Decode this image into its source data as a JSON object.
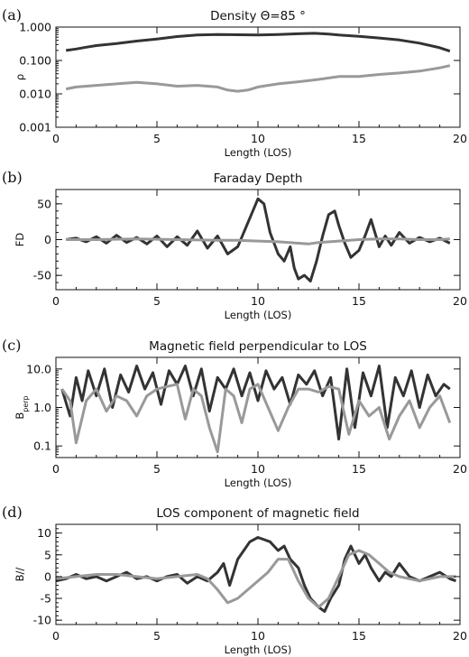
{
  "chart_data": [
    {
      "panel_label": "(a)",
      "type": "line",
      "title": "Density Θ=85 °",
      "xlabel": "Length (LOS)",
      "ylabel": "ρ",
      "xlim": [
        0,
        20
      ],
      "ylim": [
        0.001,
        1.0
      ],
      "yscale": "log",
      "xticks": [
        0,
        5,
        10,
        15,
        20
      ],
      "xtick_labels": [
        "0",
        "5",
        "10",
        "15",
        "20"
      ],
      "yticks": [
        0.001,
        0.01,
        0.1,
        1.0
      ],
      "ytick_labels": [
        "0.001",
        "0.010",
        "0.100",
        "1.000"
      ],
      "series": [
        {
          "color": "#333333",
          "x": [
            0.5,
            1,
            1.5,
            2,
            3,
            4,
            5,
            6,
            7,
            8,
            9,
            10,
            11,
            12,
            12.8,
            13.5,
            14,
            15,
            16,
            17,
            18,
            19,
            19.5
          ],
          "y": [
            0.2,
            0.22,
            0.25,
            0.28,
            0.32,
            0.38,
            0.44,
            0.52,
            0.58,
            0.6,
            0.59,
            0.58,
            0.6,
            0.63,
            0.65,
            0.62,
            0.58,
            0.53,
            0.47,
            0.41,
            0.33,
            0.24,
            0.19
          ]
        },
        {
          "color": "#999999",
          "x": [
            0.5,
            1,
            2,
            3,
            4,
            5,
            6,
            7,
            8,
            8.5,
            9,
            9.5,
            10,
            11,
            12,
            13,
            14,
            15,
            16,
            17,
            18,
            19,
            19.5
          ],
          "y": [
            0.014,
            0.016,
            0.018,
            0.02,
            0.022,
            0.02,
            0.017,
            0.018,
            0.016,
            0.013,
            0.012,
            0.013,
            0.016,
            0.02,
            0.023,
            0.027,
            0.033,
            0.033,
            0.038,
            0.042,
            0.048,
            0.06,
            0.07
          ]
        }
      ]
    },
    {
      "panel_label": "(b)",
      "type": "line",
      "title": "Faraday Depth",
      "xlabel": "Length (LOS)",
      "ylabel": "FD",
      "xlim": [
        0,
        20
      ],
      "ylim": [
        -70,
        70
      ],
      "yscale": "linear",
      "xticks": [
        0,
        5,
        10,
        15,
        20
      ],
      "xtick_labels": [
        "0",
        "5",
        "10",
        "15",
        "20"
      ],
      "yticks": [
        -50,
        0,
        50
      ],
      "ytick_labels": [
        "-50",
        "0",
        "50"
      ],
      "series": [
        {
          "color": "#333333",
          "x": [
            0.5,
            1,
            1.5,
            2,
            2.5,
            3,
            3.5,
            4,
            4.5,
            5,
            5.5,
            6,
            6.5,
            7,
            7.5,
            8,
            8.5,
            9,
            9.3,
            9.6,
            10,
            10.3,
            10.6,
            11,
            11.3,
            11.6,
            11.8,
            12,
            12.3,
            12.6,
            12.9,
            13.2,
            13.5,
            13.8,
            14,
            14.3,
            14.6,
            15,
            15.3,
            15.6,
            16,
            16.3,
            16.6,
            17,
            17.5,
            18,
            18.5,
            19,
            19.5
          ],
          "y": [
            0,
            2,
            -3,
            4,
            -5,
            6,
            -4,
            3,
            -6,
            5,
            -10,
            4,
            -8,
            12,
            -12,
            5,
            -20,
            -10,
            10,
            30,
            57,
            50,
            10,
            -20,
            -30,
            -10,
            -40,
            -55,
            -50,
            -58,
            -30,
            5,
            35,
            40,
            20,
            -5,
            -25,
            -15,
            5,
            28,
            -10,
            5,
            -8,
            10,
            -5,
            3,
            -3,
            2,
            -5
          ]
        },
        {
          "color": "#999999",
          "x": [
            0.5,
            2,
            4,
            6,
            8,
            9,
            10,
            11,
            12,
            12.5,
            13,
            14,
            15,
            16,
            17,
            18,
            19,
            19.5
          ],
          "y": [
            0,
            0,
            1,
            0,
            -1,
            -1,
            -2,
            -3,
            -5,
            -6,
            -4,
            -2,
            0,
            1,
            1,
            0,
            0,
            1
          ]
        }
      ]
    },
    {
      "panel_label": "(c)",
      "type": "line",
      "title": "Magnetic field perpendicular to LOS",
      "xlabel": "Length (LOS)",
      "ylabel": "B_perp",
      "xlim": [
        0,
        20
      ],
      "ylim": [
        0.05,
        20
      ],
      "yscale": "log",
      "xticks": [
        0,
        5,
        10,
        15,
        20
      ],
      "xtick_labels": [
        "0",
        "5",
        "10",
        "15",
        "20"
      ],
      "yticks": [
        0.1,
        1.0,
        10.0
      ],
      "ytick_labels": [
        "0.1",
        "1.0",
        "10.0"
      ],
      "series": [
        {
          "color": "#333333",
          "x": [
            0.3,
            0.7,
            1,
            1.3,
            1.6,
            2,
            2.4,
            2.8,
            3.2,
            3.6,
            4,
            4.4,
            4.8,
            5.2,
            5.6,
            6,
            6.4,
            6.8,
            7.2,
            7.6,
            8,
            8.4,
            8.8,
            9.2,
            9.6,
            10,
            10.4,
            10.8,
            11.2,
            11.6,
            12,
            12.4,
            12.8,
            13.2,
            13.6,
            14,
            14.4,
            14.8,
            15.2,
            15.6,
            16,
            16.4,
            16.8,
            17.2,
            17.6,
            18,
            18.4,
            18.8,
            19.2,
            19.5
          ],
          "y": [
            3,
            0.6,
            6,
            1.5,
            9,
            2,
            10,
            1,
            7,
            2.5,
            12,
            3,
            8,
            1.2,
            9,
            4,
            12,
            2,
            10,
            0.8,
            6,
            3,
            10,
            2,
            8,
            1.5,
            9,
            3,
            6,
            1.2,
            7,
            4,
            9,
            2,
            6,
            0.15,
            10,
            0.3,
            8,
            2,
            12,
            0.3,
            6,
            2,
            9,
            1,
            7,
            2,
            4,
            3
          ]
        },
        {
          "color": "#999999",
          "x": [
            0.3,
            0.7,
            1,
            1.5,
            2,
            2.5,
            3,
            3.5,
            4,
            4.5,
            5,
            5.5,
            6,
            6.4,
            6.8,
            7.2,
            7.6,
            8,
            8.4,
            8.8,
            9.2,
            9.6,
            10,
            10.5,
            11,
            11.5,
            12,
            12.5,
            13,
            13.5,
            14,
            14.5,
            15,
            15.5,
            16,
            16.5,
            17,
            17.5,
            18,
            18.5,
            19,
            19.5
          ],
          "y": [
            3,
            1.5,
            0.12,
            1.5,
            3,
            0.8,
            2,
            1.5,
            0.6,
            2,
            3,
            3.5,
            4,
            0.5,
            3,
            2,
            0.3,
            0.07,
            3,
            2,
            0.4,
            3,
            4,
            1,
            0.25,
            1,
            3,
            3,
            2.5,
            3.5,
            3,
            0.2,
            1.5,
            0.6,
            1,
            0.15,
            0.6,
            1.5,
            0.3,
            1,
            2,
            0.4
          ]
        }
      ]
    },
    {
      "panel_label": "(d)",
      "type": "line",
      "title": "LOS component of magnetic field",
      "xlabel": "Length (LOS)",
      "ylabel": "B//",
      "xlim": [
        0,
        20
      ],
      "ylim": [
        -11,
        12
      ],
      "yscale": "linear",
      "xticks": [
        0,
        5,
        10,
        15,
        20
      ],
      "xtick_labels": [
        "0",
        "5",
        "10",
        "15",
        "20"
      ],
      "yticks": [
        -10,
        -5,
        0,
        5,
        10
      ],
      "ytick_labels": [
        "-10",
        "-5",
        "0",
        "5",
        "10"
      ],
      "series": [
        {
          "color": "#333333",
          "x": [
            0,
            0.5,
            1,
            1.5,
            2,
            2.5,
            3,
            3.5,
            4,
            4.5,
            5,
            5.5,
            6,
            6.5,
            7,
            7.5,
            8,
            8.3,
            8.6,
            9,
            9.3,
            9.6,
            10,
            10.3,
            10.6,
            11,
            11.3,
            11.6,
            12,
            12.3,
            12.6,
            13,
            13.3,
            13.6,
            14,
            14.3,
            14.6,
            15,
            15.3,
            15.6,
            16,
            16.3,
            16.6,
            17,
            17.5,
            18,
            18.5,
            19,
            19.5,
            19.8
          ],
          "y": [
            -1,
            -0.5,
            0.5,
            -0.5,
            0,
            -1,
            0,
            1,
            -0.5,
            0,
            -1,
            0,
            0.5,
            -1.5,
            0,
            -1,
            1,
            3,
            -2,
            4,
            6,
            8,
            9,
            8.5,
            8,
            6,
            7,
            4,
            2,
            -2,
            -5,
            -7,
            -8,
            -5,
            -2,
            4,
            7,
            3,
            5,
            2,
            -1,
            1,
            0,
            3,
            0,
            -1,
            0,
            1,
            -0.5,
            -1
          ]
        },
        {
          "color": "#999999",
          "x": [
            0,
            1,
            2,
            3,
            4,
            5,
            6,
            7,
            7.5,
            8,
            8.5,
            9,
            9.5,
            10,
            10.5,
            11,
            11.5,
            12,
            12.5,
            13,
            13.5,
            14,
            14.5,
            15,
            15.5,
            16,
            16.5,
            17,
            18,
            19,
            19.8
          ],
          "y": [
            -0.5,
            0,
            0.5,
            0.5,
            0,
            -0.5,
            0,
            0.5,
            -0.5,
            -3,
            -6,
            -5,
            -3,
            -1,
            1,
            4,
            4,
            -1,
            -5,
            -7,
            -5,
            0,
            5,
            6,
            5,
            3,
            1,
            0,
            -1,
            0,
            0
          ]
        }
      ]
    }
  ]
}
